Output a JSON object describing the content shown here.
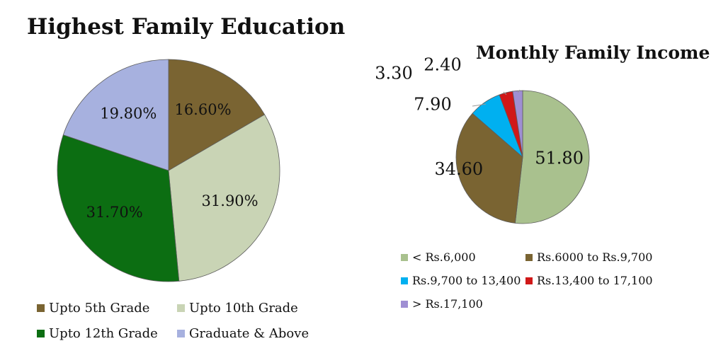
{
  "chart_data": [
    {
      "type": "pie",
      "title": "Highest Family Education",
      "series": [
        {
          "name": "Upto 5th Grade",
          "value": 16.6,
          "label": "16.60%",
          "color": "#7a6432"
        },
        {
          "name": "Upto 10th Grade",
          "value": 31.9,
          "label": "31.90%",
          "color": "#c9d4b5"
        },
        {
          "name": "Upto 12th Grade",
          "value": 31.7,
          "label": "31.70%",
          "color": "#0c6e12"
        },
        {
          "name": "Graduate & Above",
          "value": 19.8,
          "label": "19.80%",
          "color": "#a7b1df"
        }
      ],
      "legend_placement": "bottom"
    },
    {
      "type": "pie",
      "title": "Monthly Family Income",
      "series": [
        {
          "name": "< Rs.6,000",
          "value": 51.8,
          "label": "51.80",
          "color": "#a9c18e"
        },
        {
          "name": "Rs.6000 to Rs.9,700",
          "value": 34.6,
          "label": "34.60",
          "color": "#7a6432"
        },
        {
          "name": "Rs.9,700 to 13,400",
          "value": 7.9,
          "label": "7.90",
          "color": "#00b0f0"
        },
        {
          "name": "Rs.13,400 to 17,100",
          "value": 3.3,
          "label": "3.30",
          "color": "#d01818"
        },
        {
          "name": "> Rs.17,100",
          "value": 2.4,
          "label": "2.40",
          "color": "#9f8fd3"
        }
      ],
      "legend_placement": "bottom"
    }
  ]
}
